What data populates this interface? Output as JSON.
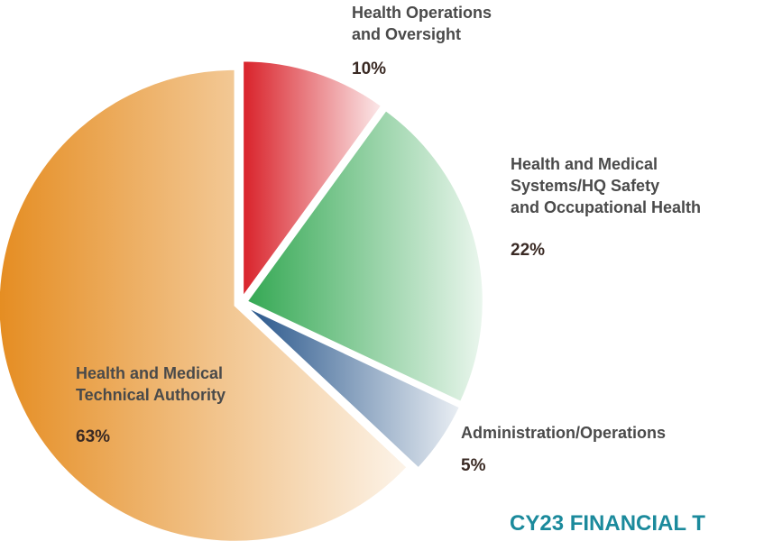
{
  "chart_data": {
    "type": "pie",
    "title": "CY23 FINANCIAL T",
    "categories": [
      "Health Operations and Oversight",
      "Health and Medical Systems/HQ Safety and Occupational Health",
      "Administration/Operations",
      "Health and Medical Technical Authority"
    ],
    "values": [
      10,
      22,
      5,
      63
    ],
    "value_labels": [
      "10%",
      "22%",
      "5%",
      "63%"
    ],
    "colors": [
      "#d9222a",
      "#34a853",
      "#27558a",
      "#e58d22"
    ]
  }
}
